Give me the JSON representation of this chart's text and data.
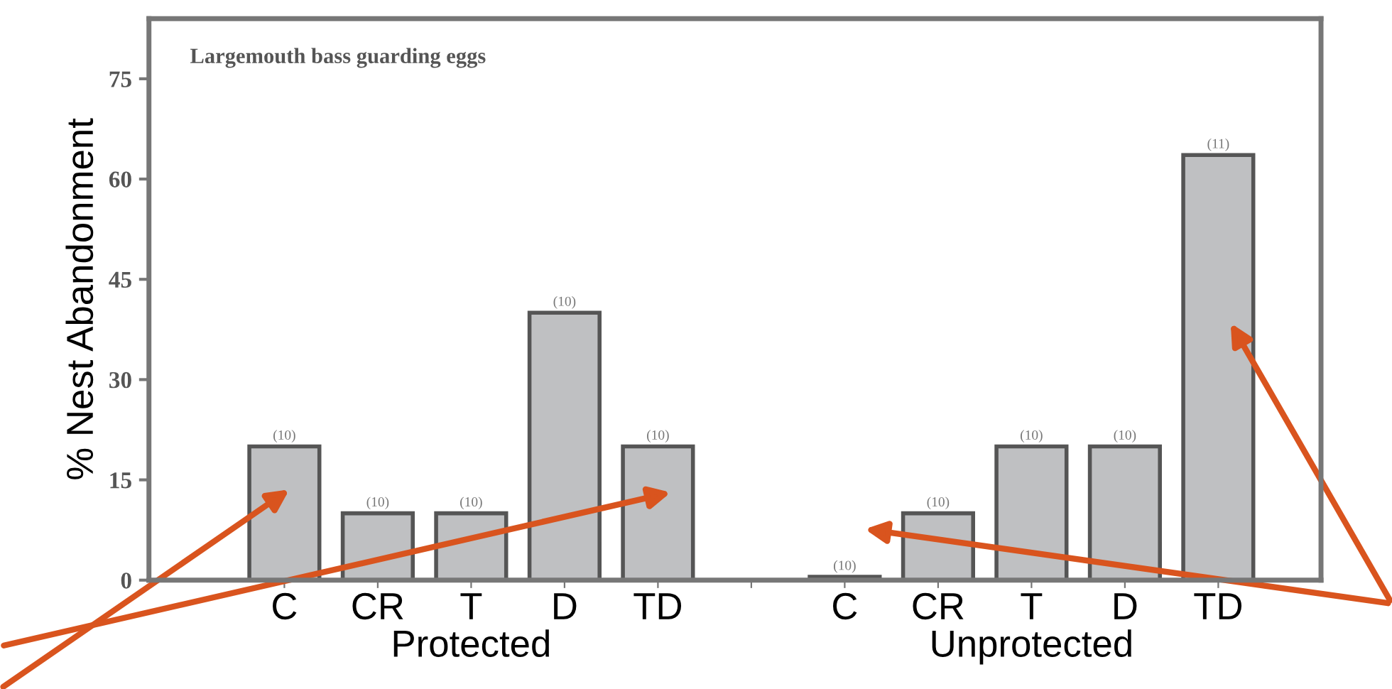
{
  "chart_data": {
    "type": "bar",
    "title": "Largemouth bass guarding eggs",
    "ylabel": "% Nest Abandonment",
    "categories": [
      "C",
      "CR",
      "T",
      "D",
      "TD",
      null,
      "C",
      "CR",
      "T",
      "D",
      "TD"
    ],
    "values": [
      20,
      10,
      10,
      40,
      20,
      null,
      0.5,
      10,
      20,
      20,
      63.6
    ],
    "color": "#bfc0c2",
    "ylim": [
      0,
      84
    ],
    "yticks": [
      0,
      15,
      30,
      45,
      60,
      75
    ],
    "grid": false,
    "annotations": [
      "Protected",
      "Unprotected",
      "(10)",
      "(10)",
      "(10)",
      "(10)",
      "(10)",
      "(10)",
      "(10)",
      "(10)",
      "(10)",
      "(11)"
    ]
  }
}
